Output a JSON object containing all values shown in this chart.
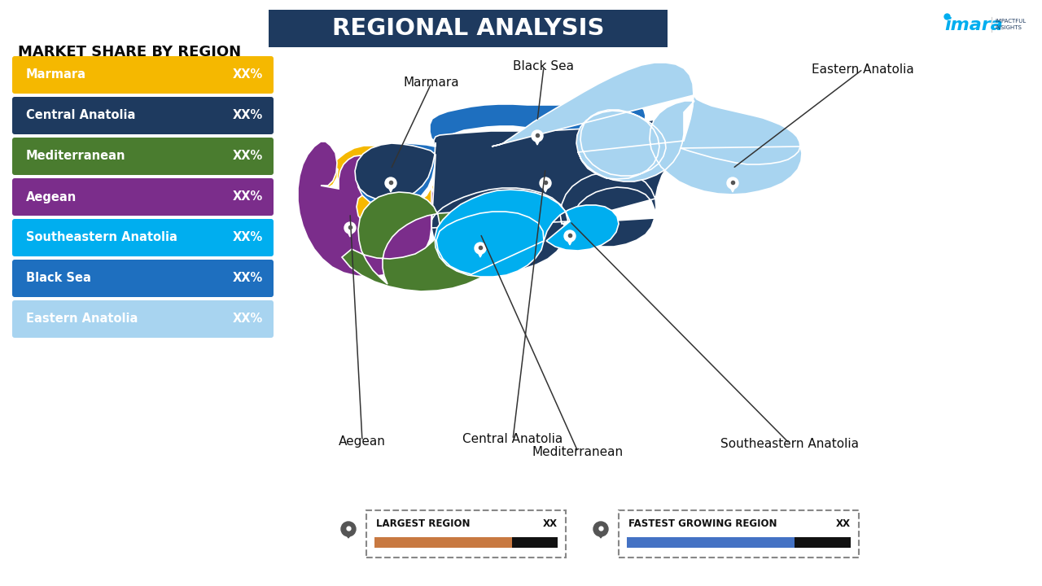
{
  "title": "REGIONAL ANALYSIS",
  "subtitle": "MARKET SHARE BY REGION",
  "bg_color": "#FFFFFF",
  "title_bg_color": "#1E3A5F",
  "title_text_color": "#FFFFFF",
  "regions": [
    {
      "name": "Marmara",
      "color": "#F5B800",
      "value": "XX%"
    },
    {
      "name": "Central Anatolia",
      "color": "#1E3A5F",
      "value": "XX%"
    },
    {
      "name": "Mediterranean",
      "color": "#4A7C2F",
      "value": "XX%"
    },
    {
      "name": "Aegean",
      "color": "#7B2D8B",
      "value": "XX%"
    },
    {
      "name": "Southeastern Anatolia",
      "color": "#00AEEF",
      "value": "XX%"
    },
    {
      "name": "Black Sea",
      "color": "#1E6FBF",
      "value": "XX%"
    },
    {
      "name": "Eastern Anatolia",
      "color": "#A8D4F0",
      "value": "XX%"
    }
  ],
  "legend1_label": "LARGEST REGION",
  "legend1_value": "XX",
  "legend1_bar_color": "#C87941",
  "legend2_label": "FASTEST GROWING REGION",
  "legend2_value": "XX",
  "legend2_bar_color": "#4472C4",
  "imara_dot_color": "#00AEEF",
  "imara_text_color": "#1E3A5F"
}
